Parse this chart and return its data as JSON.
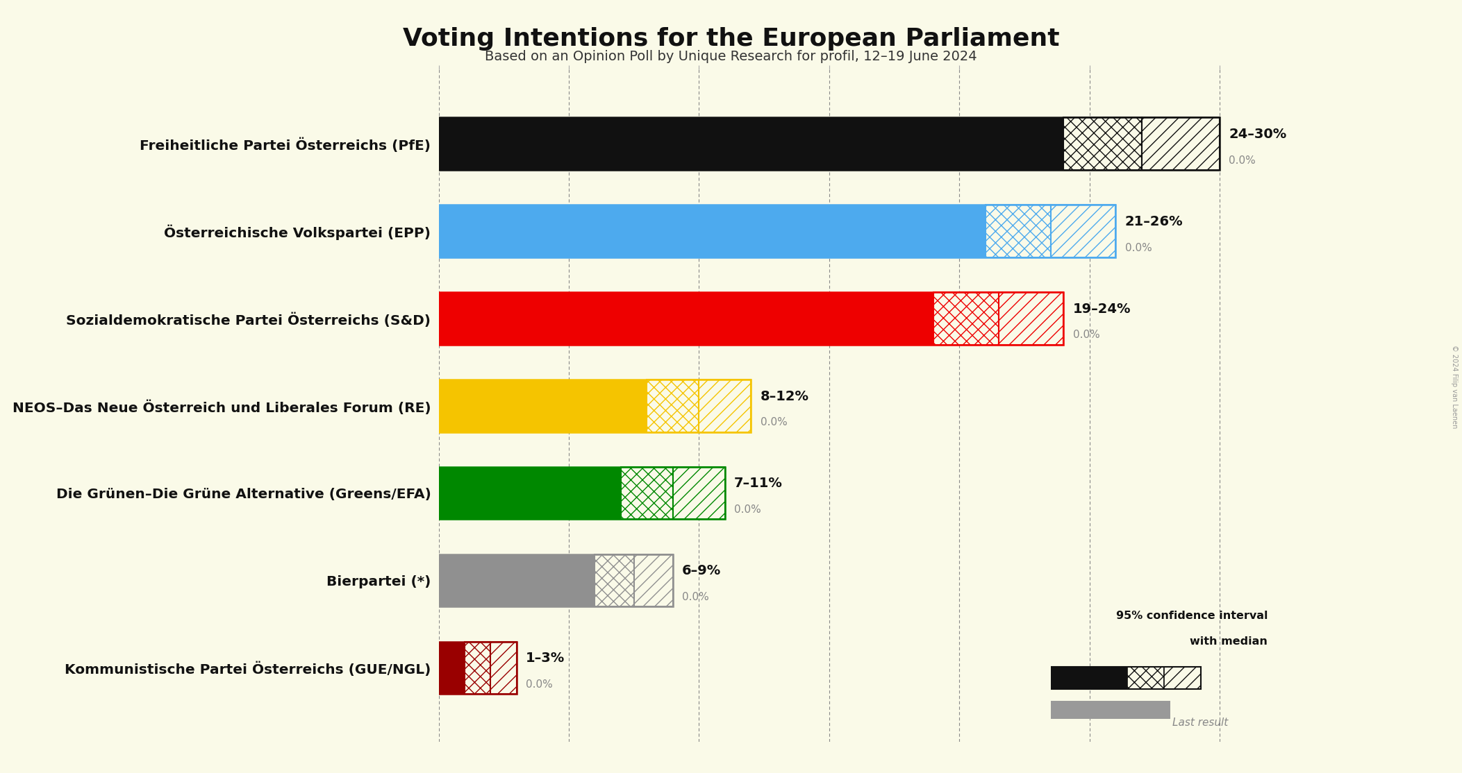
{
  "title": "Voting Intentions for the European Parliament",
  "subtitle": "Based on an Opinion Poll by Unique Research for profil, 12–19 June 2024",
  "copyright": "© 2024 Filip van Laenen",
  "background_color": "#FAFAE8",
  "parties": [
    {
      "name": "Freiheitliche Partei Österreichs (PfE)",
      "color": "#111111",
      "median": 24,
      "ci_low": 24,
      "ci_high": 30,
      "last_result": 0.0,
      "label": "24–30%"
    },
    {
      "name": "Österreichische Volkspartei (EPP)",
      "color": "#4DAAEE",
      "median": 21,
      "ci_low": 21,
      "ci_high": 26,
      "last_result": 0.0,
      "label": "21–26%"
    },
    {
      "name": "Sozialdemokratische Partei Österreichs (S&D)",
      "color": "#EE0000",
      "median": 19,
      "ci_low": 19,
      "ci_high": 24,
      "last_result": 0.0,
      "label": "19–24%"
    },
    {
      "name": "NEOS–Das Neue Österreich und Liberales Forum (RE)",
      "color": "#F5C400",
      "median": 8,
      "ci_low": 8,
      "ci_high": 12,
      "last_result": 0.0,
      "label": "8–12%"
    },
    {
      "name": "Die Grünen–Die Grüne Alternative (Greens/EFA)",
      "color": "#008800",
      "median": 7,
      "ci_low": 7,
      "ci_high": 11,
      "last_result": 0.0,
      "label": "7–11%"
    },
    {
      "name": "Bierpartei (*)",
      "color": "#909090",
      "median": 6,
      "ci_low": 6,
      "ci_high": 9,
      "last_result": 0.0,
      "label": "6–9%"
    },
    {
      "name": "Kommunistische Partei Österreichs (GUE/NGL)",
      "color": "#990000",
      "median": 1,
      "ci_low": 1,
      "ci_high": 3,
      "last_result": 0.0,
      "label": "1–3%"
    }
  ],
  "xlim": [
    0,
    32
  ],
  "tick_positions": [
    0,
    5,
    10,
    15,
    20,
    25,
    30
  ],
  "bar_height": 0.6,
  "label_fontsize": 14.5,
  "title_fontsize": 26,
  "subtitle_fontsize": 14
}
